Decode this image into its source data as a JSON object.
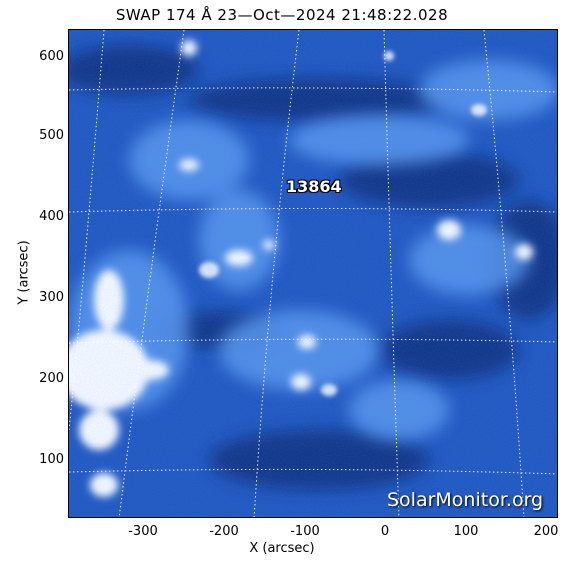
{
  "title": "SWAP 174 Å 23—Oct—2024 21:48:22.028",
  "axes": {
    "xlabel": "X (arcsec)",
    "ylabel": "Y (arcsec)",
    "xticks": [
      "-300",
      "-200",
      "-100",
      "0",
      "100",
      "200"
    ],
    "yticks": [
      "600",
      "500",
      "400",
      "300",
      "200",
      "100"
    ]
  },
  "annotations": {
    "active_region": "13864",
    "credit": "SolarMonitor.org"
  },
  "colors": {
    "background": "#1c4fb6",
    "dark_lane": "#0a2a78",
    "bright": "#ffffff",
    "mid": "#5a97ee"
  }
}
